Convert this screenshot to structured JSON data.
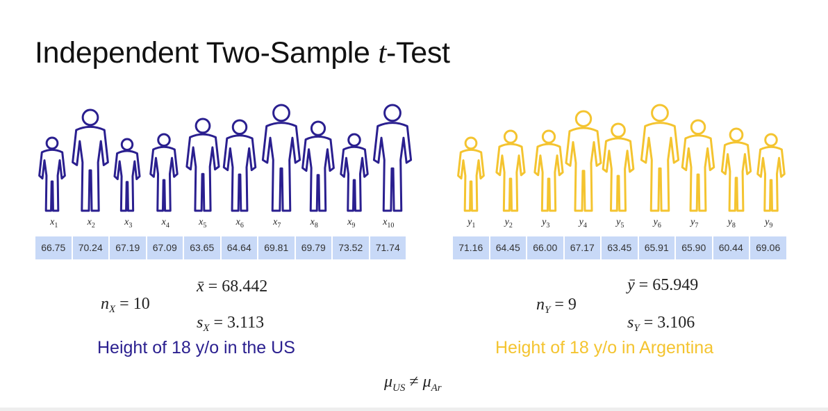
{
  "title": {
    "prefix": "Independent Two-Sample ",
    "var": "t",
    "suffix": "-Test"
  },
  "us": {
    "color": "#2a1f8f",
    "labels": [
      "x1",
      "x2",
      "x3",
      "x4",
      "x5",
      "x6",
      "x7",
      "x8",
      "x9",
      "x10"
    ],
    "values": [
      "66.75",
      "70.24",
      "67.19",
      "67.09",
      "63.65",
      "64.64",
      "69.81",
      "69.79",
      "73.52",
      "71.74"
    ],
    "n_label": "n",
    "n_sub": "X",
    "n_val": " = 10",
    "mean_var": "x̄",
    "mean_val": " = 68.442",
    "sd_var": "s",
    "sd_sub": "X",
    "sd_val": " = 3.113",
    "caption": "Height of 18 y/o in the US"
  },
  "ar": {
    "color": "#f4c430",
    "labels": [
      "y1",
      "y2",
      "y3",
      "y4",
      "y5",
      "y6",
      "y7",
      "y8",
      "y9"
    ],
    "values": [
      "71.16",
      "64.45",
      "66.00",
      "67.17",
      "63.45",
      "65.91",
      "65.90",
      "60.44",
      "69.06"
    ],
    "n_label": "n",
    "n_sub": "Y",
    "n_val": " = 9",
    "mean_var": "ȳ",
    "mean_val": " = 65.949",
    "sd_var": "s",
    "sd_sub": "Y",
    "sd_val": " = 3.106",
    "caption": "Height of 18 y/o in Argentina"
  },
  "hypothesis": {
    "mu1": "μ",
    "sub1": "US",
    "neq": " ≠ ",
    "mu2": "μ",
    "sub2": "Ar"
  }
}
